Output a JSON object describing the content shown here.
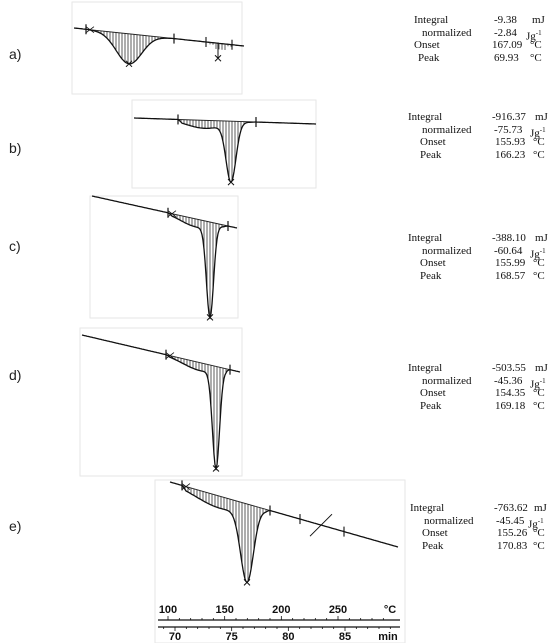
{
  "chart_data": {
    "type": "line",
    "x_axes": [
      {
        "ticks": [
          100,
          150,
          200,
          250
        ],
        "unit": "°C"
      },
      {
        "ticks": [
          70,
          75,
          80,
          85
        ],
        "unit": "min"
      }
    ],
    "panels": [
      {
        "label": "a)",
        "integral": "-9.38",
        "integral_unit": "mJ",
        "normalized": "-2.84",
        "normalized_unit": "Jg",
        "normalized_exp": "-1",
        "onset": "167.09",
        "onset_unit": "°C",
        "peak": "69.93",
        "peak_unit": "°C"
      },
      {
        "label": "b)",
        "integral": "-916.37",
        "integral_unit": "mJ",
        "normalized": "-75.73",
        "normalized_unit": "Jg",
        "normalized_exp": "-1",
        "onset": "155.93",
        "onset_unit": "°C",
        "peak": "166.23",
        "peak_unit": "°C"
      },
      {
        "label": "c)",
        "integral": "-388.10",
        "integral_unit": "mJ",
        "normalized": "-60.64",
        "normalized_unit": "Jg",
        "normalized_exp": "-1",
        "onset": "155.99",
        "onset_unit": "°C",
        "peak": "168.57",
        "peak_unit": "°C"
      },
      {
        "label": "d)",
        "integral": "-503.55",
        "integral_unit": "mJ",
        "normalized": "-45.36",
        "normalized_unit": "Jg",
        "normalized_exp": "-1",
        "onset": "154.35",
        "onset_unit": "°C",
        "peak": "169.18",
        "peak_unit": "°C"
      },
      {
        "label": "e)",
        "integral": "-763.62",
        "integral_unit": "mJ",
        "normalized": "-45.45",
        "normalized_unit": "Jg",
        "normalized_exp": "-1",
        "onset": "155.26",
        "onset_unit": "°C",
        "peak": "170.83",
        "peak_unit": "°C"
      }
    ]
  },
  "labels": {
    "integral": "Integral",
    "normalized": "normalized",
    "onset": "Onset",
    "peak": "Peak"
  }
}
